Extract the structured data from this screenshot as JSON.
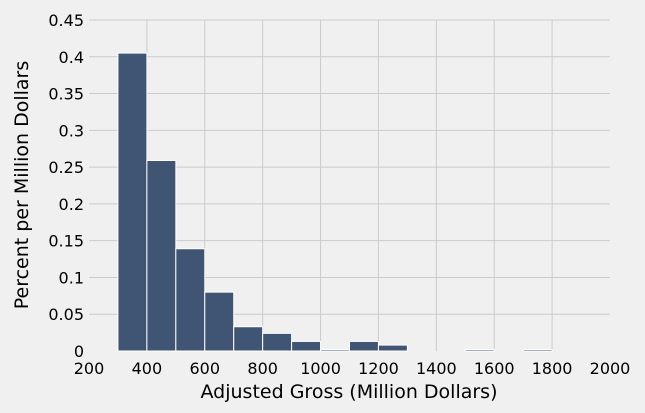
{
  "chart_data": {
    "type": "bar",
    "subtype": "histogram",
    "title": "",
    "xlabel": "Adjusted Gross (Million Dollars)",
    "ylabel": "Percent per Million Dollars",
    "xlim": [
      200,
      2000
    ],
    "ylim": [
      0,
      0.45
    ],
    "x_ticks": [
      200,
      400,
      600,
      800,
      1000,
      1200,
      1400,
      1600,
      1800,
      2000
    ],
    "x_tick_labels": [
      "200",
      "400",
      "600",
      "800",
      "1000",
      "1200",
      "1400",
      "1600",
      "1800",
      "2000"
    ],
    "y_ticks": [
      0,
      0.05,
      0.1,
      0.15,
      0.2,
      0.25,
      0.3,
      0.35,
      0.4,
      0.45
    ],
    "y_tick_labels": [
      "0",
      "0.05",
      "0.1",
      "0.15",
      "0.2",
      "0.25",
      "0.3",
      "0.35",
      "0.4",
      "0.45"
    ],
    "grid": true,
    "bar_color": "#405574",
    "background_color": "#f0f0f0",
    "grid_color": "#cbcbcb",
    "bins": [
      {
        "start": 300,
        "end": 400,
        "value": 0.405
      },
      {
        "start": 400,
        "end": 500,
        "value": 0.259
      },
      {
        "start": 500,
        "end": 600,
        "value": 0.139
      },
      {
        "start": 600,
        "end": 700,
        "value": 0.08
      },
      {
        "start": 700,
        "end": 800,
        "value": 0.033
      },
      {
        "start": 800,
        "end": 900,
        "value": 0.024
      },
      {
        "start": 900,
        "end": 1000,
        "value": 0.013
      },
      {
        "start": 1000,
        "end": 1100,
        "value": 0.002
      },
      {
        "start": 1100,
        "end": 1200,
        "value": 0.013
      },
      {
        "start": 1200,
        "end": 1300,
        "value": 0.008
      },
      {
        "start": 1300,
        "end": 1400,
        "value": 0
      },
      {
        "start": 1400,
        "end": 1500,
        "value": 0
      },
      {
        "start": 1500,
        "end": 1600,
        "value": 0.002
      },
      {
        "start": 1600,
        "end": 1700,
        "value": 0
      },
      {
        "start": 1700,
        "end": 1800,
        "value": 0.002
      }
    ]
  }
}
